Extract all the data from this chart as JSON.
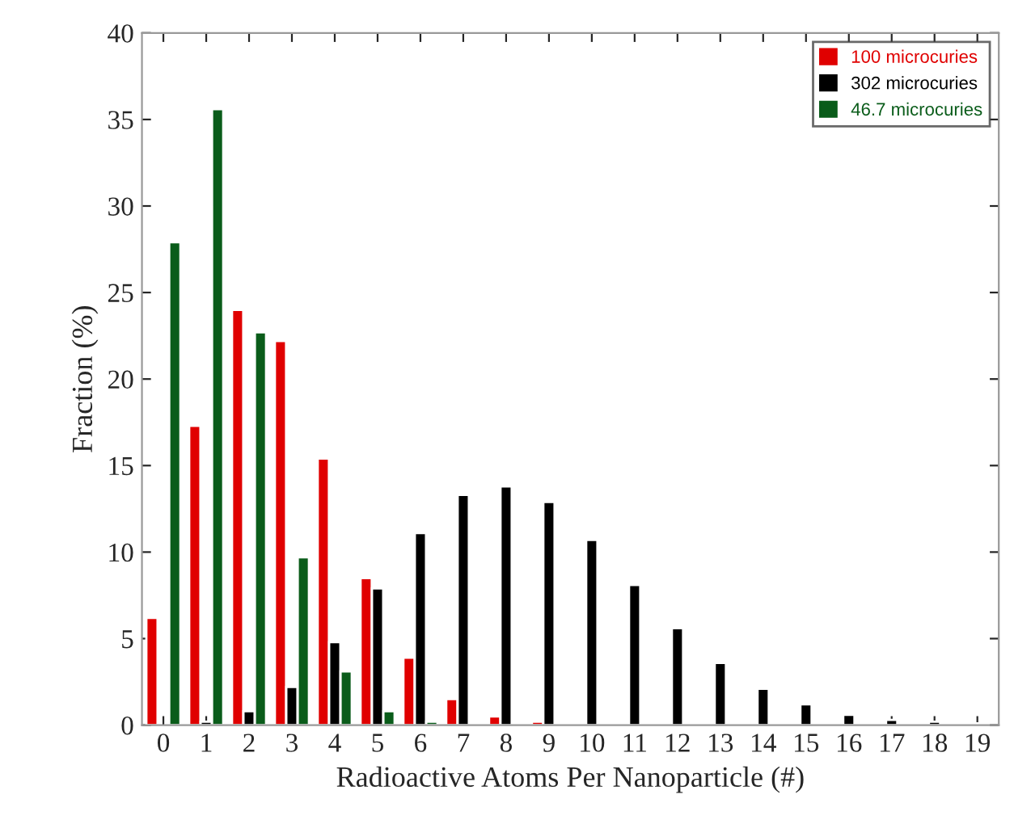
{
  "chart_data": {
    "type": "bar",
    "xlabel": "Radioactive Atoms Per Nanoparticle (#)",
    "ylabel": "Fraction (%)",
    "categories": [
      "0",
      "1",
      "2",
      "3",
      "4",
      "5",
      "6",
      "7",
      "8",
      "9",
      "10",
      "11",
      "12",
      "13",
      "14",
      "15",
      "16",
      "17",
      "18",
      "19"
    ],
    "series": [
      {
        "name": "100 microcuries",
        "color": "#e00000",
        "values": [
          6.2,
          17.3,
          24.0,
          22.2,
          15.4,
          8.5,
          3.9,
          1.5,
          0.5,
          0.2,
          null,
          null,
          null,
          null,
          null,
          null,
          null,
          null,
          null,
          null
        ]
      },
      {
        "name": "302 microcuries",
        "color": "#000000",
        "values": [
          null,
          0.2,
          0.8,
          2.2,
          4.8,
          7.9,
          11.1,
          13.3,
          13.8,
          12.9,
          10.7,
          8.1,
          5.6,
          3.6,
          2.1,
          1.2,
          0.6,
          0.3,
          0.2,
          0.1
        ]
      },
      {
        "name": "46.7 microcuries",
        "color": "#0a5c1a",
        "values": [
          27.9,
          35.6,
          22.7,
          9.7,
          3.1,
          0.8,
          0.2,
          null,
          null,
          null,
          null,
          null,
          null,
          null,
          null,
          null,
          null,
          null,
          null,
          null
        ]
      }
    ],
    "ylim": [
      0,
      40
    ],
    "yticks": [
      0,
      5,
      10,
      15,
      20,
      25,
      30,
      35,
      40
    ],
    "grid": false,
    "legend": "top right"
  }
}
